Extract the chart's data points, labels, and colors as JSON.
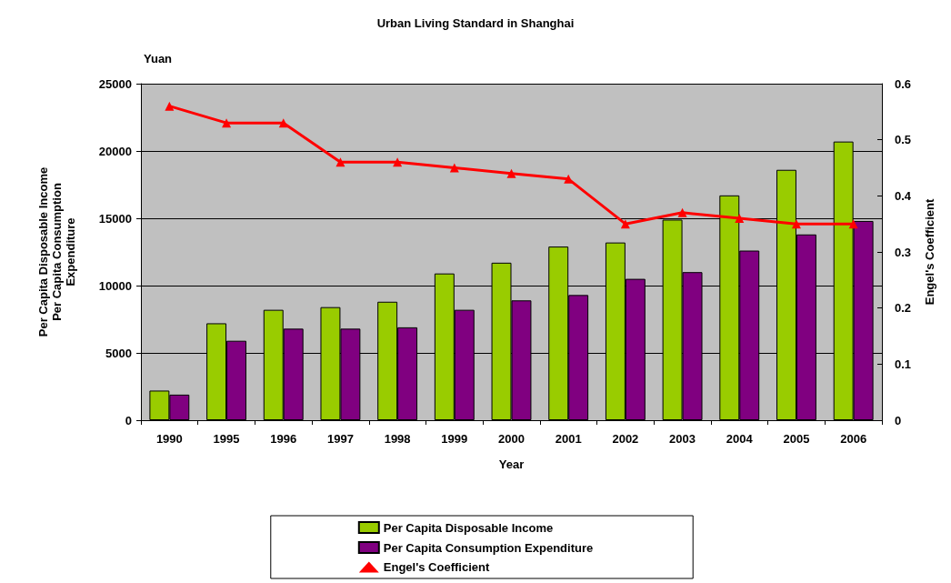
{
  "chart_data": {
    "type": "bar",
    "title": "Urban Living Standard in Shanghai",
    "xlabel": "Year",
    "ylabel": "Per Capita Disposable Income\nPer Capita Consumption\nExpenditure",
    "y2label": "Engel's Coefficient",
    "annotations": [
      "Yuan"
    ],
    "categories": [
      "1990",
      "1995",
      "1996",
      "1997",
      "1998",
      "1999",
      "2000",
      "2001",
      "2002",
      "2003",
      "2004",
      "2005",
      "2006"
    ],
    "series": [
      {
        "name": "Per Capita Disposable Income",
        "color": "#99cc00",
        "values": [
          2200,
          7200,
          8200,
          8400,
          8800,
          10900,
          11700,
          12900,
          13200,
          14900,
          16700,
          18600,
          20700
        ]
      },
      {
        "name": "Per Capita Consumption Expenditure",
        "color": "#800080",
        "values": [
          1900,
          5900,
          6800,
          6800,
          6900,
          8200,
          8900,
          9300,
          10500,
          11000,
          12600,
          13800,
          14800
        ]
      },
      {
        "name": "Engel's Coefficient",
        "type": "line",
        "axis": "y2",
        "color": "#ff0000",
        "marker": "triangle",
        "values": [
          0.56,
          0.53,
          0.53,
          0.46,
          0.46,
          0.45,
          0.44,
          0.43,
          0.35,
          0.37,
          0.36,
          0.35,
          0.35
        ]
      }
    ],
    "ylim": [
      0,
      25000
    ],
    "yticks": [
      0,
      5000,
      10000,
      15000,
      20000,
      25000
    ],
    "y2lim": [
      0,
      0.6
    ],
    "y2ticks": [
      0,
      0.1,
      0.2,
      0.3,
      0.4,
      0.5,
      0.6
    ],
    "grid": "y",
    "legend": "bottom"
  }
}
